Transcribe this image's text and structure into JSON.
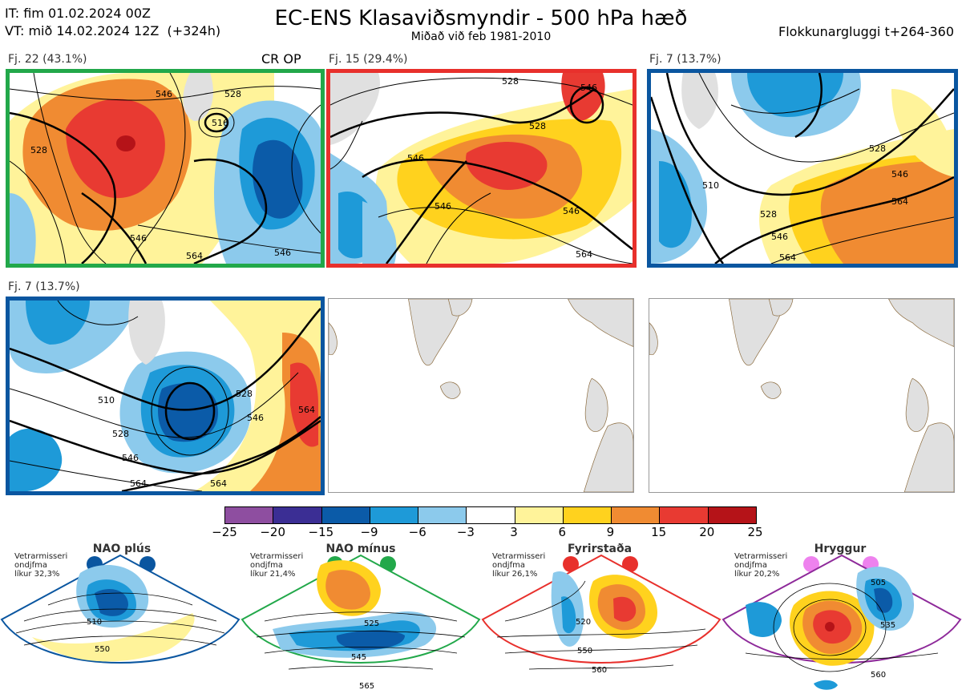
{
  "header": {
    "it_line": "IT: fim 01.02.2024 00Z",
    "vt_line": "VT: mið 14.02.2024 12Z  (+324h)",
    "title": "EC-ENS Klasaviðsmyndir - 500 hPa hæð",
    "subtitle": "Miðað við feb 1981-2010",
    "window": "Flokkunargluggi t+264-360"
  },
  "panels": [
    {
      "label": "Fj. 22 (43.1%)",
      "extra": "CR OP",
      "border": "#22a84a",
      "contours": [
        "528",
        "546",
        "516",
        "528",
        "546",
        "546",
        "564"
      ]
    },
    {
      "label": "Fj. 15 (29.4%)",
      "border": "#e8302c",
      "contours": [
        "528",
        "546",
        "528",
        "546",
        "546",
        "564",
        "546"
      ]
    },
    {
      "label": "Fj. 7 (13.7%)",
      "border": "#0a56a0",
      "contours": [
        "510",
        "528",
        "546",
        "546",
        "564",
        "564",
        "528"
      ]
    },
    {
      "label": "Fj. 7 (13.7%)",
      "border": "#0a56a0",
      "contours": [
        "510",
        "528",
        "546",
        "564",
        "564",
        "528",
        "546",
        "564"
      ]
    }
  ],
  "colorbar": {
    "colors": [
      "#8e4ea0",
      "#3b2e94",
      "#0b5ba8",
      "#1e9ad8",
      "#8ccaec",
      "#ffffff",
      "#fff39a",
      "#ffd21e",
      "#f08b32",
      "#e83a32",
      "#b51318"
    ],
    "labels": [
      "−25",
      "−20",
      "−15",
      "−9",
      "−6",
      "−3",
      "3",
      "6",
      "9",
      "15",
      "20",
      "25"
    ]
  },
  "regimes": [
    {
      "name": "NAO plús",
      "color": "#0a56a0",
      "note": "Vetrarmisseri\nondjfma\nlíkur 32,3%",
      "contours": [
        "510",
        "550"
      ]
    },
    {
      "name": "NAO mínus",
      "color": "#22a84a",
      "note": "Vetrarmisseri\nondjfma\nlíkur 21,4%",
      "contours": [
        "525",
        "545",
        "565"
      ]
    },
    {
      "name": "Fyrirstaða",
      "color": "#e8302c",
      "note": "Vetrarmisseri\nondjfma\nlíkur 26,1%",
      "contours": [
        "520",
        "550",
        "560"
      ]
    },
    {
      "name": "Hryggur",
      "color": "#8e2a9a",
      "dot": "#ee82ee",
      "note": "Vetrarmisseri\nondjfma\nlíkur 20,2%",
      "contours": [
        "505",
        "535",
        "560"
      ]
    }
  ]
}
